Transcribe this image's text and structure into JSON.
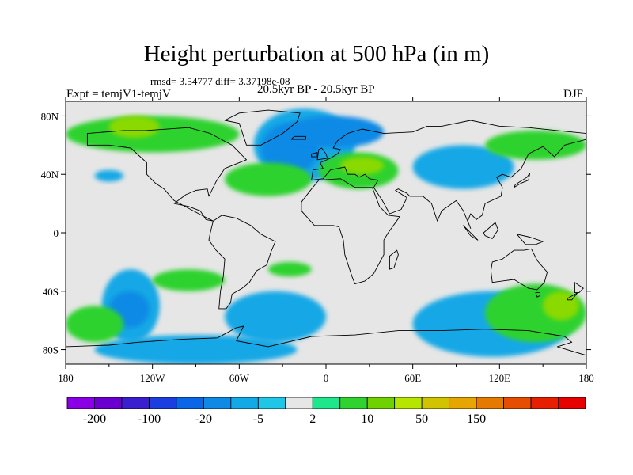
{
  "title": "Height perturbation at 500 hPa (in m)",
  "stats": "rmsd= 3.54777 diff= 3.37198e-08",
  "experiment": "Expt = temjV1-temjV",
  "period": "20.5kyr BP - 20.5kyr BP",
  "season": "DJF",
  "map": {
    "projection": "cylindrical equidistant",
    "lon_range": [
      -180,
      180
    ],
    "lat_range": [
      -90,
      90
    ],
    "background_color": "#e6e6e6",
    "x_ticks": [
      {
        "lon": -180,
        "label": "180"
      },
      {
        "lon": -120,
        "label": "120W"
      },
      {
        "lon": -60,
        "label": "60W"
      },
      {
        "lon": 0,
        "label": "0"
      },
      {
        "lon": 60,
        "label": "60E"
      },
      {
        "lon": 120,
        "label": "120E"
      },
      {
        "lon": 180,
        "label": "180"
      }
    ],
    "y_ticks": [
      {
        "lat": 80,
        "label": "80N"
      },
      {
        "lat": 40,
        "label": "40N"
      },
      {
        "lat": 0,
        "label": "0"
      },
      {
        "lat": -40,
        "label": "40S"
      },
      {
        "lat": -80,
        "label": "80S"
      }
    ],
    "fields": [
      {
        "kind": "negative",
        "level": 1,
        "lon": [
          -50,
          20
        ],
        "lat": [
          35,
          85
        ]
      },
      {
        "kind": "negative",
        "level": 2,
        "lon": [
          -45,
          -5
        ],
        "lat": [
          40,
          75
        ]
      },
      {
        "kind": "negative",
        "level": 2,
        "lon": [
          -30,
          40
        ],
        "lat": [
          58,
          80
        ]
      },
      {
        "kind": "negative",
        "level": 1,
        "lon": [
          60,
          130
        ],
        "lat": [
          30,
          60
        ]
      },
      {
        "kind": "negative",
        "level": 1,
        "lon": [
          -160,
          -140
        ],
        "lat": [
          35,
          43
        ]
      },
      {
        "kind": "negative",
        "level": 1,
        "lon": [
          -155,
          -115
        ],
        "lat": [
          -75,
          -25
        ]
      },
      {
        "kind": "negative",
        "level": 2,
        "lon": [
          -150,
          -122
        ],
        "lat": [
          -65,
          -40
        ]
      },
      {
        "kind": "negative",
        "level": 1,
        "lon": [
          -70,
          0
        ],
        "lat": [
          -75,
          -40
        ]
      },
      {
        "kind": "negative",
        "level": 1,
        "lon": [
          60,
          170
        ],
        "lat": [
          -85,
          -40
        ]
      },
      {
        "kind": "negative",
        "level": 1,
        "lon": [
          -160,
          -20
        ],
        "lat": [
          -90,
          -70
        ]
      },
      {
        "kind": "positive",
        "level": 1,
        "lon": [
          -180,
          -60
        ],
        "lat": [
          55,
          80
        ]
      },
      {
        "kind": "positive",
        "level": 2,
        "lon": [
          -150,
          -115
        ],
        "lat": [
          65,
          80
        ]
      },
      {
        "kind": "positive",
        "level": 1,
        "lon": [
          -70,
          -10
        ],
        "lat": [
          25,
          48
        ]
      },
      {
        "kind": "positive",
        "level": 1,
        "lon": [
          -5,
          50
        ],
        "lat": [
          30,
          55
        ]
      },
      {
        "kind": "positive",
        "level": 2,
        "lon": [
          10,
          40
        ],
        "lat": [
          40,
          52
        ]
      },
      {
        "kind": "positive",
        "level": 1,
        "lon": [
          110,
          180
        ],
        "lat": [
          50,
          70
        ]
      },
      {
        "kind": "positive",
        "level": 1,
        "lon": [
          -180,
          -140
        ],
        "lat": [
          -75,
          -50
        ]
      },
      {
        "kind": "positive",
        "level": 1,
        "lon": [
          -120,
          -70
        ],
        "lat": [
          -40,
          -25
        ]
      },
      {
        "kind": "positive",
        "level": 1,
        "lon": [
          -40,
          -10
        ],
        "lat": [
          -30,
          -20
        ]
      },
      {
        "kind": "positive",
        "level": 1,
        "lon": [
          110,
          180
        ],
        "lat": [
          -75,
          -35
        ]
      },
      {
        "kind": "positive",
        "level": 2,
        "lon": [
          150,
          175
        ],
        "lat": [
          -60,
          -40
        ]
      }
    ],
    "land": [
      [
        [
          -165,
          68
        ],
        [
          -140,
          70
        ],
        [
          -125,
          70
        ],
        [
          -95,
          72
        ],
        [
          -80,
          68
        ],
        [
          -65,
          60
        ],
        [
          -55,
          50
        ],
        [
          -70,
          44
        ],
        [
          -76,
          35
        ],
        [
          -81,
          25
        ],
        [
          -82,
          30
        ],
        [
          -90,
          29
        ],
        [
          -97,
          26
        ],
        [
          -105,
          20
        ],
        [
          -95,
          18
        ],
        [
          -87,
          15
        ],
        [
          -83,
          9
        ],
        [
          -78,
          8
        ],
        [
          -86,
          12
        ],
        [
          -105,
          22
        ],
        [
          -112,
          30
        ],
        [
          -118,
          34
        ],
        [
          -124,
          40
        ],
        [
          -124,
          48
        ],
        [
          -135,
          58
        ],
        [
          -150,
          60
        ],
        [
          -165,
          60
        ],
        [
          -165,
          68
        ]
      ],
      [
        [
          -78,
          8
        ],
        [
          -72,
          12
        ],
        [
          -62,
          10
        ],
        [
          -52,
          5
        ],
        [
          -45,
          -1
        ],
        [
          -35,
          -6
        ],
        [
          -38,
          -13
        ],
        [
          -41,
          -22
        ],
        [
          -48,
          -26
        ],
        [
          -53,
          -34
        ],
        [
          -58,
          -38
        ],
        [
          -65,
          -42
        ],
        [
          -66,
          -48
        ],
        [
          -69,
          -52
        ],
        [
          -74,
          -52
        ],
        [
          -73,
          -40
        ],
        [
          -71,
          -30
        ],
        [
          -70,
          -18
        ],
        [
          -76,
          -12
        ],
        [
          -81,
          -5
        ],
        [
          -80,
          0
        ],
        [
          -78,
          8
        ]
      ],
      [
        [
          -55,
          60
        ],
        [
          -45,
          60
        ],
        [
          -30,
          68
        ],
        [
          -20,
          76
        ],
        [
          -18,
          82
        ],
        [
          -40,
          84
        ],
        [
          -60,
          82
        ],
        [
          -70,
          77
        ],
        [
          -60,
          75
        ],
        [
          -55,
          60
        ]
      ],
      [
        [
          -10,
          36
        ],
        [
          -9,
          43
        ],
        [
          -2,
          44
        ],
        [
          -4,
          48
        ],
        [
          3,
          51
        ],
        [
          8,
          54
        ],
        [
          10,
          57
        ],
        [
          5,
          58
        ],
        [
          8,
          63
        ],
        [
          15,
          68
        ],
        [
          25,
          71
        ],
        [
          40,
          68
        ],
        [
          60,
          69
        ],
        [
          70,
          73
        ],
        [
          80,
          73
        ],
        [
          100,
          77
        ],
        [
          120,
          73
        ],
        [
          140,
          72
        ],
        [
          160,
          70
        ],
        [
          180,
          68
        ],
        [
          180,
          64
        ],
        [
          165,
          60
        ],
        [
          158,
          52
        ],
        [
          150,
          59
        ],
        [
          140,
          54
        ],
        [
          135,
          44
        ],
        [
          128,
          38
        ],
        [
          122,
          40
        ],
        [
          118,
          38
        ],
        [
          122,
          31
        ],
        [
          121,
          25
        ],
        [
          110,
          20
        ],
        [
          108,
          12
        ],
        [
          104,
          9
        ],
        [
          100,
          13
        ],
        [
          98,
          8
        ],
        [
          100,
          3
        ],
        [
          95,
          15
        ],
        [
          90,
          22
        ],
        [
          80,
          15
        ],
        [
          77,
          8
        ],
        [
          73,
          20
        ],
        [
          67,
          25
        ],
        [
          58,
          25
        ],
        [
          56,
          27
        ],
        [
          50,
          30
        ],
        [
          48,
          29
        ],
        [
          56,
          24
        ],
        [
          52,
          16
        ],
        [
          44,
          13
        ],
        [
          39,
          22
        ],
        [
          33,
          31
        ],
        [
          36,
          36
        ],
        [
          30,
          37
        ],
        [
          27,
          40
        ],
        [
          23,
          38
        ],
        [
          20,
          40
        ],
        [
          15,
          40
        ],
        [
          13,
          45
        ],
        [
          8,
          44
        ],
        [
          3,
          43
        ],
        [
          -2,
          37
        ],
        [
          -10,
          36
        ]
      ],
      [
        [
          -17,
          21
        ],
        [
          -17,
          15
        ],
        [
          -8,
          5
        ],
        [
          5,
          5
        ],
        [
          9,
          4
        ],
        [
          12,
          -5
        ],
        [
          13,
          -15
        ],
        [
          18,
          -30
        ],
        [
          20,
          -35
        ],
        [
          27,
          -33
        ],
        [
          33,
          -28
        ],
        [
          40,
          -15
        ],
        [
          40,
          -5
        ],
        [
          43,
          0
        ],
        [
          51,
          11
        ],
        [
          43,
          12
        ],
        [
          37,
          18
        ],
        [
          32,
          31
        ],
        [
          20,
          31
        ],
        [
          10,
          37
        ],
        [
          -5,
          36
        ],
        [
          -10,
          30
        ],
        [
          -17,
          21
        ]
      ],
      [
        [
          44,
          -25
        ],
        [
          47,
          -24
        ],
        [
          50,
          -15
        ],
        [
          49,
          -12
        ],
        [
          44,
          -16
        ],
        [
          44,
          -25
        ]
      ],
      [
        [
          115,
          -20
        ],
        [
          122,
          -18
        ],
        [
          130,
          -12
        ],
        [
          137,
          -12
        ],
        [
          142,
          -11
        ],
        [
          146,
          -19
        ],
        [
          153,
          -27
        ],
        [
          151,
          -34
        ],
        [
          146,
          -39
        ],
        [
          140,
          -38
        ],
        [
          135,
          -35
        ],
        [
          130,
          -32
        ],
        [
          115,
          -34
        ],
        [
          114,
          -26
        ],
        [
          115,
          -20
        ]
      ],
      [
        [
          145,
          -41
        ],
        [
          148,
          -41
        ],
        [
          148,
          -43
        ],
        [
          146,
          -44
        ],
        [
          145,
          -41
        ]
      ],
      [
        [
          172,
          -34
        ],
        [
          178,
          -38
        ],
        [
          175,
          -41
        ],
        [
          172,
          -41
        ],
        [
          172,
          -34
        ]
      ],
      [
        [
          167,
          -45
        ],
        [
          174,
          -41
        ],
        [
          170,
          -46
        ],
        [
          167,
          -46
        ],
        [
          167,
          -45
        ]
      ],
      [
        [
          -6,
          50
        ],
        [
          1,
          51
        ],
        [
          0,
          54
        ],
        [
          -3,
          58
        ],
        [
          -5,
          57
        ],
        [
          -6,
          50
        ]
      ],
      [
        [
          -10,
          52
        ],
        [
          -6,
          52
        ],
        [
          -6,
          55
        ],
        [
          -10,
          54
        ],
        [
          -10,
          52
        ]
      ],
      [
        [
          -24,
          64
        ],
        [
          -14,
          64
        ],
        [
          -14,
          66
        ],
        [
          -22,
          66
        ],
        [
          -24,
          64
        ]
      ],
      [
        [
          130,
          31
        ],
        [
          135,
          34
        ],
        [
          140,
          36
        ],
        [
          141,
          41
        ],
        [
          139,
          38
        ],
        [
          131,
          33
        ],
        [
          130,
          31
        ]
      ],
      [
        [
          95,
          5
        ],
        [
          105,
          -5
        ],
        [
          100,
          -2
        ],
        [
          95,
          5
        ]
      ],
      [
        [
          109,
          0
        ],
        [
          117,
          7
        ],
        [
          119,
          2
        ],
        [
          115,
          -4
        ],
        [
          110,
          -2
        ],
        [
          109,
          0
        ]
      ],
      [
        [
          132,
          -1
        ],
        [
          141,
          -3
        ],
        [
          150,
          -6
        ],
        [
          145,
          -8
        ],
        [
          138,
          -8
        ],
        [
          132,
          -1
        ]
      ],
      [
        [
          -180,
          -78
        ],
        [
          -150,
          -77
        ],
        [
          -130,
          -75
        ],
        [
          -100,
          -73
        ],
        [
          -75,
          -72
        ],
        [
          -62,
          -65
        ],
        [
          -57,
          -64
        ],
        [
          -62,
          -74
        ],
        [
          -40,
          -78
        ],
        [
          -10,
          -71
        ],
        [
          20,
          -70
        ],
        [
          50,
          -67
        ],
        [
          80,
          -67
        ],
        [
          110,
          -66
        ],
        [
          140,
          -67
        ],
        [
          165,
          -71
        ],
        [
          170,
          -75
        ],
        [
          160,
          -78
        ],
        [
          180,
          -84
        ],
        [
          180,
          -90
        ],
        [
          -180,
          -90
        ],
        [
          -180,
          -78
        ]
      ]
    ]
  },
  "colorbar": {
    "colors": [
      "#8a00e6",
      "#6a00d0",
      "#3a1fd0",
      "#1a3ee0",
      "#0a66e6",
      "#0e8ae6",
      "#13a8e6",
      "#1fc6e6",
      "#e6e6e6",
      "#1ee68a",
      "#2fd22f",
      "#6fd200",
      "#b6e600",
      "#d2c300",
      "#e6a500",
      "#e67a00",
      "#e64d00",
      "#e61f00",
      "#e60000"
    ],
    "labels": [
      {
        "boundary": 1,
        "text": "-200"
      },
      {
        "boundary": 3,
        "text": "-100"
      },
      {
        "boundary": 5,
        "text": "-20"
      },
      {
        "boundary": 7,
        "text": "-5"
      },
      {
        "boundary": 9,
        "text": "2"
      },
      {
        "boundary": 11,
        "text": "10"
      },
      {
        "boundary": 13,
        "text": "50"
      },
      {
        "boundary": 15,
        "text": "150"
      }
    ]
  },
  "palette": {
    "negative": [
      "#13a8e6",
      "#0e8ae6"
    ],
    "positive": [
      "#2fd22f",
      "#8ad900"
    ]
  }
}
